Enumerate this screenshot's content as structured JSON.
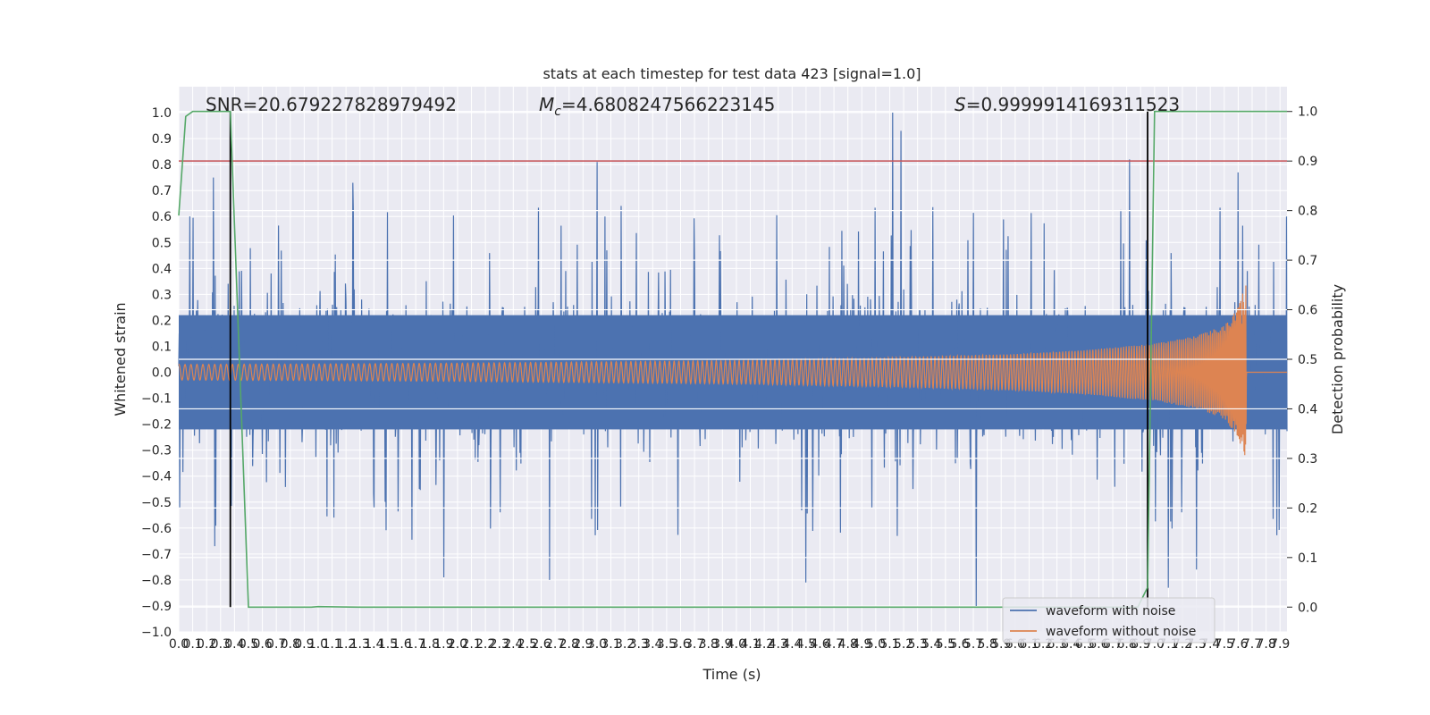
{
  "chart_data": {
    "type": "line",
    "title": "stats at each timestep for test data 423 [signal=1.0]",
    "xlabel": "Time (s)",
    "ylabel_left": "Whitened strain",
    "ylabel_right": "Detection probability",
    "xlim": [
      0.0,
      7.95
    ],
    "ylim_left": [
      -1.0,
      1.1
    ],
    "ylim_right": [
      -0.05,
      1.05
    ],
    "x_ticks": [
      0.0,
      0.1,
      0.2,
      0.3,
      0.4,
      0.5,
      0.6,
      0.7,
      0.8,
      0.9,
      1.0,
      1.1,
      1.2,
      1.3,
      1.4,
      1.5,
      1.6,
      1.7,
      1.8,
      1.9,
      2.0,
      2.1,
      2.2,
      2.3,
      2.4,
      2.5,
      2.6,
      2.7,
      2.8,
      2.9,
      3.0,
      3.1,
      3.2,
      3.3,
      3.4,
      3.5,
      3.6,
      3.7,
      3.8,
      3.9,
      4.0,
      4.1,
      4.2,
      4.3,
      4.4,
      4.5,
      4.6,
      4.7,
      4.8,
      4.9,
      5.0,
      5.1,
      5.2,
      5.3,
      5.4,
      5.5,
      5.6,
      5.7,
      5.8,
      5.9,
      6.0,
      6.1,
      6.2,
      6.3,
      6.4,
      6.5,
      6.6,
      6.7,
      6.8,
      6.9,
      7.0,
      7.1,
      7.2,
      7.3,
      7.4,
      7.5,
      7.6,
      7.7,
      7.8,
      7.9
    ],
    "x_tick_labels": [
      "0.0",
      "0.1",
      "0.2",
      "0.3",
      "0.4",
      "0.5",
      "0.6",
      "0.7",
      "0.8",
      "0.9",
      "1.0",
      "1.1",
      "1.2",
      "1.3",
      "1.4",
      "1.5",
      "1.6",
      "1.7",
      "1.8",
      "1.9",
      "2.0",
      "2.1",
      "2.2",
      "2.3",
      "2.4",
      "2.5",
      "2.6",
      "2.7",
      "2.8",
      "2.9",
      "3.0",
      "3.1",
      "3.2",
      "3.3",
      "3.4",
      "3.5",
      "3.6",
      "3.7",
      "3.8",
      "3.9",
      "4.0",
      "4.1",
      "4.2",
      "4.3",
      "4.4",
      "4.5",
      "4.6",
      "4.7",
      "4.8",
      "4.9",
      "5.0",
      "5.1",
      "5.2",
      "5.3",
      "5.4",
      "5.5",
      "5.6",
      "5.7",
      "5.8",
      "5.9",
      "6.0",
      "6.1",
      "6.2",
      "6.3",
      "6.4",
      "6.5",
      "6.6",
      "6.7",
      "6.8",
      "6.9",
      "7.0",
      "7.1",
      "7.2",
      "7.3",
      "7.4",
      "7.5",
      "7.6",
      "7.7",
      "7.8",
      "7.9"
    ],
    "y_ticks_left": [
      -1.0,
      -0.9,
      -0.8,
      -0.7,
      -0.6,
      -0.5,
      -0.4,
      -0.3,
      -0.2,
      -0.1,
      0.0,
      0.1,
      0.2,
      0.3,
      0.4,
      0.5,
      0.6,
      0.7,
      0.8,
      0.9,
      1.0
    ],
    "y_tick_labels_left": [
      "−1.0",
      "−0.9",
      "−0.8",
      "−0.7",
      "−0.6",
      "−0.5",
      "−0.4",
      "−0.3",
      "−0.2",
      "−0.1",
      "0.0",
      "0.1",
      "0.2",
      "0.3",
      "0.4",
      "0.5",
      "0.6",
      "0.7",
      "0.8",
      "0.9",
      "1.0"
    ],
    "y_ticks_right": [
      0.0,
      0.1,
      0.2,
      0.3,
      0.4,
      0.5,
      0.6,
      0.7,
      0.8,
      0.9,
      1.0
    ],
    "y_tick_labels_right": [
      "0.0",
      "0.1",
      "0.2",
      "0.3",
      "0.4",
      "0.5",
      "0.6",
      "0.7",
      "0.8",
      "0.9",
      "1.0"
    ],
    "annotations": {
      "snr": "SNR=20.679227828979492",
      "mc": "M",
      "mc_sub": "c",
      "mc_value": "=4.6808247566223145",
      "s": "S",
      "s_value": "=0.9999914169311523"
    },
    "threshold": {
      "value": 0.9,
      "axis": "right",
      "color": "#c44e52"
    },
    "vlines": [
      0.37,
      6.95
    ],
    "detection_probability": {
      "name": "detection probability",
      "color": "#55a868",
      "x": [
        0.0,
        0.05,
        0.1,
        0.37,
        0.5,
        0.95,
        1.0,
        1.3,
        6.88,
        6.95,
        7.0,
        7.95
      ],
      "y": [
        0.79,
        0.99,
        1.0,
        1.0,
        0.0,
        0.0,
        0.001,
        0.0,
        0.0,
        0.04,
        1.0,
        1.0
      ]
    },
    "series": [
      {
        "name": "waveform with noise",
        "color": "#4c72b0",
        "typical_range": [
          -0.4,
          0.4
        ],
        "peaks": [
          {
            "x": 0.25,
            "y": 0.75
          },
          {
            "x": 1.25,
            "y": 0.73
          },
          {
            "x": 3.0,
            "y": 0.81
          },
          {
            "x": 5.12,
            "y": 1.0
          },
          {
            "x": 5.18,
            "y": 0.93
          },
          {
            "x": 6.82,
            "y": 0.82
          },
          {
            "x": 7.6,
            "y": 0.77
          },
          {
            "x": 0.26,
            "y": -0.67
          },
          {
            "x": 1.9,
            "y": -0.79
          },
          {
            "x": 2.66,
            "y": -0.8
          },
          {
            "x": 4.5,
            "y": -0.81
          },
          {
            "x": 5.72,
            "y": -0.9
          },
          {
            "x": 7.1,
            "y": -0.83
          },
          {
            "x": 7.3,
            "y": -0.76
          }
        ]
      },
      {
        "name": "waveform without noise",
        "color": "#dd8452",
        "x": [
          0.0,
          1.0,
          2.0,
          3.0,
          4.0,
          5.0,
          6.0,
          6.5,
          7.0,
          7.3,
          7.5,
          7.6,
          7.66,
          7.67,
          7.95
        ],
        "amplitude": [
          0.03,
          0.032,
          0.035,
          0.04,
          0.045,
          0.055,
          0.07,
          0.085,
          0.11,
          0.14,
          0.18,
          0.25,
          0.35,
          0.0,
          0.0
        ],
        "end_time": 7.66
      }
    ],
    "legend": {
      "position": "lower-right",
      "items": [
        {
          "label": "waveform with noise",
          "color": "#4c72b0"
        },
        {
          "label": "waveform without noise",
          "color": "#dd8452"
        }
      ]
    }
  }
}
